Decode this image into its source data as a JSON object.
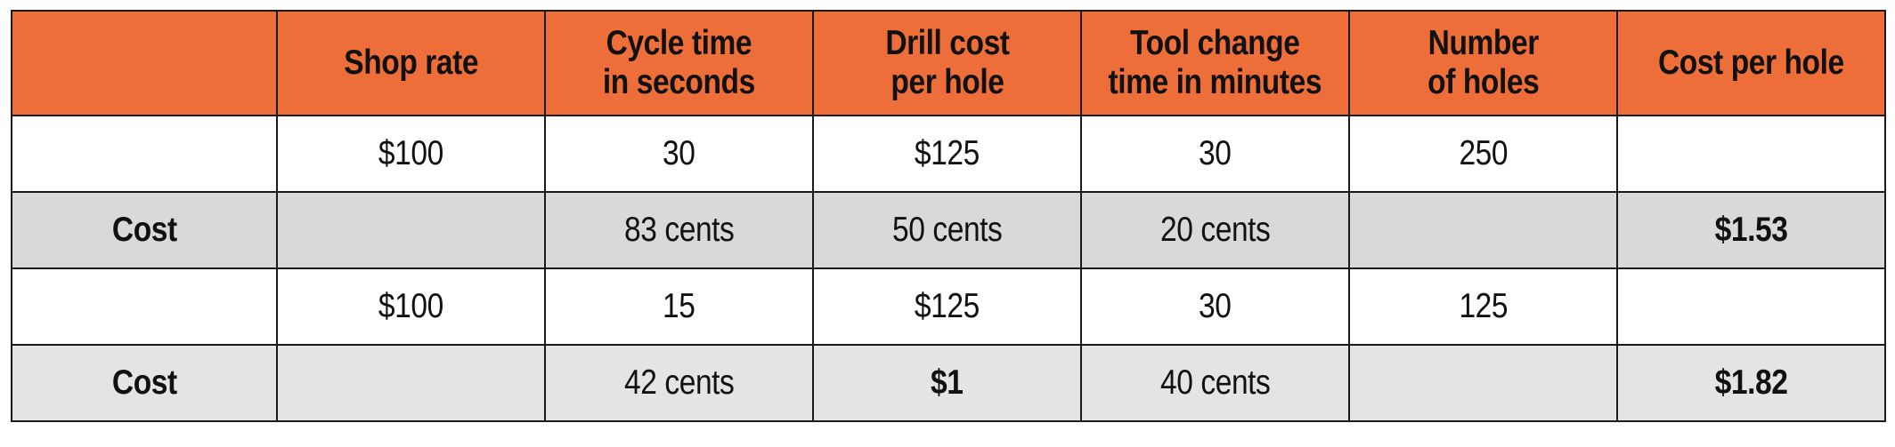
{
  "table": {
    "headers": [
      "",
      "Shop rate",
      "Cycle time\nin seconds",
      "Drill cost\nper hole",
      "Tool change\ntime in minutes",
      "Number\nof holes",
      "Cost per hole"
    ],
    "rows": [
      {
        "cells": [
          "",
          "$100",
          "30",
          "$125",
          "30",
          "250",
          ""
        ]
      },
      {
        "cells": [
          "Cost",
          "",
          "83 cents",
          "50 cents",
          "20 cents",
          "",
          "$1.53"
        ]
      },
      {
        "cells": [
          "",
          "$100",
          "15",
          "$125",
          "30",
          "125",
          ""
        ]
      },
      {
        "cells": [
          "Cost",
          "",
          "42 cents",
          "$1",
          "40 cents",
          "",
          "$1.82"
        ]
      }
    ]
  },
  "colors": {
    "header_bg": "#ED6E39",
    "cost_row_bg": "#D9D9D9",
    "border": "#1a1a1a"
  }
}
